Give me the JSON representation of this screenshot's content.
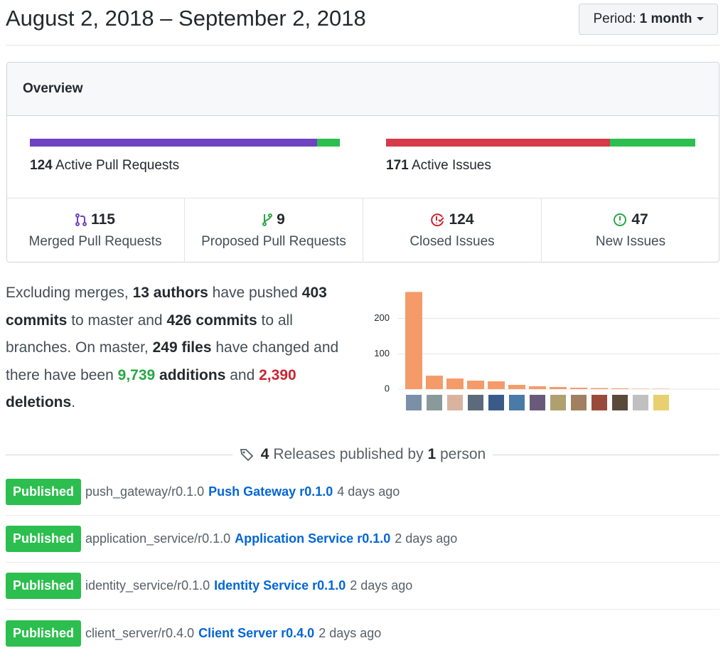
{
  "header": {
    "title": "August 2, 2018 – September 2, 2018",
    "period_label": "Period:",
    "period_value": "1 month"
  },
  "overview": {
    "title": "Overview",
    "pull_requests": {
      "count": 124,
      "label": "Active Pull Requests",
      "merged": 115,
      "merged_label": "Merged Pull Requests",
      "proposed": 9,
      "proposed_label": "Proposed Pull Requests"
    },
    "issues": {
      "count": 171,
      "label": "Active Issues",
      "closed": 124,
      "closed_label": "Closed Issues",
      "new": 47,
      "new_label": "New Issues"
    }
  },
  "summary": [
    {
      "text": "Excluding merges,",
      "style": "plain"
    },
    {
      "text": "13 authors",
      "style": "bold"
    },
    {
      "text": "have pushed",
      "style": "plain"
    },
    {
      "text": "403 commits",
      "style": "bold"
    },
    {
      "text": "to master and",
      "style": "plain"
    },
    {
      "text": "426 commits",
      "style": "bold"
    },
    {
      "text": "to all branches. On master,",
      "style": "plain"
    },
    {
      "text": "249 files",
      "style": "bold"
    },
    {
      "text": "have changed and there have been",
      "style": "plain"
    },
    {
      "text": "9,739",
      "style": "green"
    },
    {
      "text": "additions",
      "style": "bold"
    },
    {
      "text": "and",
      "style": "plain"
    },
    {
      "text": "2,390",
      "style": "red"
    },
    {
      "text": "deletions",
      "style": "bold"
    },
    {
      "text": ".",
      "style": "tight"
    }
  ],
  "chart_data": {
    "type": "bar",
    "values": [
      275,
      38,
      30,
      24,
      22,
      12,
      8,
      6,
      4,
      3,
      2,
      1,
      1
    ],
    "color": "#f59a69",
    "ylim": [
      0,
      290
    ],
    "yticks": [
      0,
      100,
      200
    ],
    "grid": true
  },
  "releases": {
    "count": 4,
    "text_1": "Releases published by",
    "people": 1,
    "text_2": "person",
    "items": [
      {
        "badge": "Published",
        "tag": "push_gateway/r0.1.0",
        "name": "Push Gateway r0.1.0",
        "time": "4 days ago"
      },
      {
        "badge": "Published",
        "tag": "application_service/r0.1.0",
        "name": "Application Service r0.1.0",
        "time": "2 days ago"
      },
      {
        "badge": "Published",
        "tag": "identity_service/r0.1.0",
        "name": "Identity Service r0.1.0",
        "time": "2 days ago"
      },
      {
        "badge": "Published",
        "tag": "client_server/r0.4.0",
        "name": "Client Server r0.4.0",
        "time": "2 days ago"
      }
    ]
  }
}
